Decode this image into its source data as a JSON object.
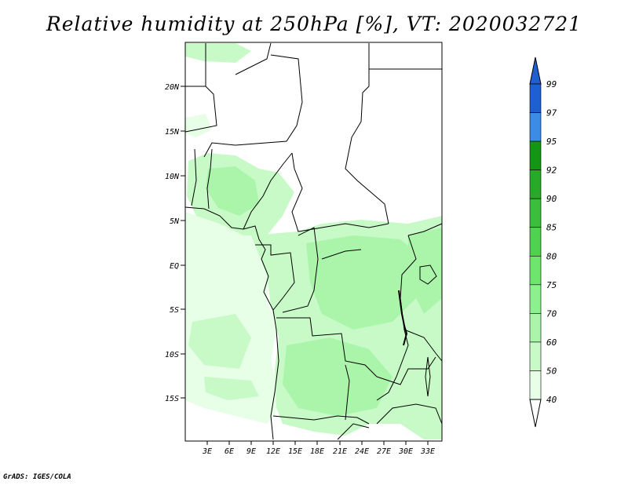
{
  "title": "Relative humidity at 250hPa [%], VT: 2020032721",
  "credit": "GrADS: IGES/COLA",
  "map": {
    "lat_labels": [
      "20N",
      "15N",
      "10N",
      "5N",
      "EQ",
      "5S",
      "10S",
      "15S"
    ],
    "lon_labels": [
      "3E",
      "6E",
      "9E",
      "12E",
      "15E",
      "18E",
      "21E",
      "24E",
      "27E",
      "30E",
      "33E"
    ]
  },
  "colorbar": {
    "labels": [
      "99",
      "97",
      "95",
      "92",
      "90",
      "85",
      "80",
      "75",
      "70",
      "60",
      "50",
      "40"
    ],
    "colors": [
      "#1e5fd2",
      "#3c8ce6",
      "#149614",
      "#28aa28",
      "#3cbe3c",
      "#50d250",
      "#6ee66e",
      "#8cf08c",
      "#aaf5aa",
      "#c8fac8",
      "#e6ffe6"
    ],
    "top_arrow_color": "#1e5fd2",
    "bottom_arrow_color": "#ffffff"
  },
  "colors": {
    "land_light": "#e6ffe6",
    "land_mid": "#c8fac8",
    "land_dark": "#aaf5aa",
    "boundaries": "#000000"
  }
}
